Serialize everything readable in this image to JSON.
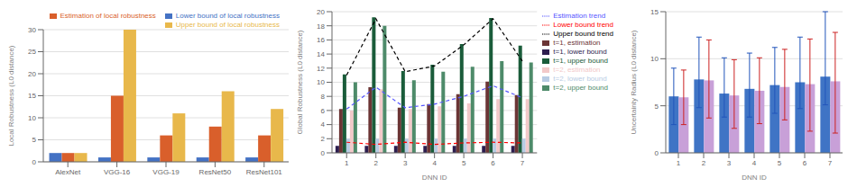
{
  "chart_data": [
    {
      "type": "bar",
      "categories": [
        "AlexNet",
        "VGG-16",
        "VGG-19",
        "ResNet50",
        "ResNet101"
      ],
      "series": [
        {
          "name": "Lower bound of local robustness",
          "color": "#4472c4",
          "values": [
            2,
            1,
            1,
            1,
            1
          ]
        },
        {
          "name": "Estimation of local robustness",
          "color": "#d95f2b",
          "values": [
            2,
            15,
            6,
            8,
            6
          ]
        },
        {
          "name": "Upper bound of local robustness",
          "color": "#e8b84b",
          "values": [
            2,
            30,
            11,
            16,
            12
          ]
        }
      ],
      "ylabel": "Local Robustness (L0 distance)",
      "ylim": [
        0,
        30
      ],
      "yticks": [
        0,
        5,
        10,
        15,
        20,
        25,
        30
      ],
      "grid": true,
      "legend": "upper right"
    },
    {
      "type": "bar",
      "x": [
        1,
        2,
        3,
        4,
        5,
        6,
        7
      ],
      "series": [
        {
          "name": "t=1, lower bound",
          "color": "#2d1e4f",
          "values": [
            1.0,
            1.0,
            1.0,
            1.0,
            1.0,
            1.0,
            1.0
          ]
        },
        {
          "name": "t=1, estimation",
          "color": "#6b3535",
          "values": [
            6.2,
            9.3,
            6.4,
            6.9,
            8.3,
            10.1,
            8.2
          ]
        },
        {
          "name": "t=1, upper bound",
          "color": "#1a5c3a",
          "values": [
            11.1,
            19.2,
            11.6,
            12.5,
            15.4,
            19.1,
            15.2
          ]
        },
        {
          "name": "t=2, lower bound",
          "color": "#b8cce4",
          "values": [
            2.0,
            2.0,
            2.0,
            2.0,
            2.0,
            2.0,
            2.0
          ]
        },
        {
          "name": "t=2, estimation",
          "color": "#f2c9c9",
          "values": [
            6.0,
            9.0,
            6.2,
            6.6,
            7.0,
            7.6,
            7.6
          ]
        },
        {
          "name": "t=2, upper bound",
          "color": "#4e8b6a",
          "values": [
            10.0,
            18.0,
            10.3,
            11.5,
            12.2,
            13.0,
            12.8
          ]
        },
        {
          "name": "Lower bound trend",
          "type": "line",
          "line_style": "dashed",
          "color": "#ff0000",
          "values": [
            1.5,
            1.2,
            1.5,
            1.2,
            1.4,
            1.5,
            1.4
          ]
        },
        {
          "name": "Estimation trend",
          "type": "line",
          "line_style": "dashed",
          "color": "#5555ff",
          "values": [
            6.2,
            9.3,
            6.4,
            6.9,
            8.0,
            9.5,
            7.8
          ]
        },
        {
          "name": "Upper bound trend",
          "type": "line",
          "line_style": "dashed",
          "color": "#000000",
          "values": [
            11.0,
            19.0,
            11.5,
            12.3,
            15.3,
            19.0,
            13.0
          ]
        }
      ],
      "xlabel": "DNN ID",
      "ylabel": "Global Robustness (L0 distance)",
      "ylim": [
        0,
        20
      ],
      "yticks": [
        0,
        2,
        4,
        6,
        8,
        10,
        12,
        14,
        16,
        18,
        20
      ],
      "grid": true,
      "legend": "upper right"
    },
    {
      "type": "bar",
      "x": [
        1,
        2,
        3,
        4,
        5,
        6,
        7
      ],
      "series": [
        {
          "color": "#3f74c5",
          "values": [
            6.0,
            7.8,
            6.3,
            6.8,
            7.2,
            7.5,
            8.1
          ],
          "error_low": [
            3.0,
            3.0,
            2.5,
            3.0,
            3.0,
            2.8,
            3.0
          ],
          "error_high": [
            3.0,
            4.5,
            3.8,
            3.8,
            4.0,
            4.8,
            6.9
          ],
          "error_color": "#2255bb"
        },
        {
          "color": "#c8a0d8",
          "values": [
            5.9,
            7.7,
            6.1,
            6.6,
            7.0,
            7.3,
            7.6
          ],
          "error_low": [
            2.9,
            4.0,
            3.5,
            3.5,
            3.5,
            5.0,
            5.5
          ],
          "error_high": [
            2.9,
            4.3,
            3.8,
            3.5,
            4.0,
            4.8,
            5.2
          ],
          "error_color": "#cc2222"
        }
      ],
      "xlabel": "DNN ID",
      "ylabel": "Uncertainty Radius (L0 distance)",
      "ylim": [
        0,
        15
      ],
      "yticks": [
        0,
        5,
        10,
        15
      ],
      "grid": true
    }
  ]
}
